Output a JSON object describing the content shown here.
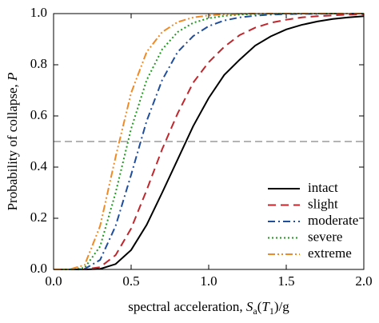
{
  "chart_data": {
    "type": "line",
    "x_label": [
      "spectral acceleration, ",
      "S",
      "a",
      "(",
      "T",
      "1",
      ")/g"
    ],
    "y_label": [
      "Probability of collapse, ",
      "P"
    ],
    "x": [
      0,
      0.1,
      0.2,
      0.3,
      0.4,
      0.5,
      0.6,
      0.7,
      0.8,
      0.9,
      1.0,
      1.1,
      1.2,
      1.3,
      1.4,
      1.5,
      1.6,
      1.7,
      1.8,
      1.9,
      2.0
    ],
    "series": [
      {
        "name": "intact",
        "color": "#000000",
        "dash": "solid",
        "values": [
          0,
          0,
          0,
          0.002,
          0.021,
          0.076,
          0.174,
          0.3,
          0.43,
          0.56,
          0.67,
          0.76,
          0.82,
          0.875,
          0.911,
          0.938,
          0.956,
          0.969,
          0.979,
          0.985,
          0.99
        ]
      },
      {
        "name": "slight",
        "color": "#c0272d",
        "dash": "dashed",
        "values": [
          0,
          0,
          0,
          0.009,
          0.056,
          0.16,
          0.31,
          0.47,
          0.61,
          0.73,
          0.81,
          0.87,
          0.916,
          0.945,
          0.964,
          0.976,
          0.985,
          0.99,
          0.993,
          0.996,
          0.997
        ]
      },
      {
        "name": "moderate",
        "color": "#1f4e9c",
        "dash": "dashdot",
        "values": [
          0,
          0,
          0.002,
          0.037,
          0.17,
          0.37,
          0.58,
          0.74,
          0.85,
          0.912,
          0.951,
          0.973,
          0.985,
          0.992,
          0.996,
          0.998,
          0.999,
          0.999,
          1.0,
          1.0,
          1.0
        ]
      },
      {
        "name": "severe",
        "color": "#1e9a1e",
        "dash": "dotted",
        "values": [
          0,
          0,
          0.006,
          0.09,
          0.3,
          0.55,
          0.74,
          0.86,
          0.928,
          0.964,
          0.982,
          0.991,
          0.996,
          0.998,
          0.999,
          1.0,
          1.0,
          1.0,
          1.0,
          1.0,
          1.0
        ]
      },
      {
        "name": "extreme",
        "color": "#f08a24",
        "dash": "dashdotdot",
        "values": [
          0,
          0,
          0.017,
          0.17,
          0.44,
          0.69,
          0.85,
          0.928,
          0.967,
          0.985,
          0.993,
          0.997,
          0.999,
          1.0,
          1.0,
          1.0,
          1.0,
          1.0,
          1.0,
          1.0,
          1.0
        ]
      }
    ],
    "reference_line": 0.5,
    "xlim": [
      0,
      2.0
    ],
    "ylim": [
      0,
      1.0
    ],
    "xticks": [
      {
        "value": 0,
        "label": "0.0"
      },
      {
        "value": 0.5,
        "label": "0.5"
      },
      {
        "value": 1.0,
        "label": "1.0"
      },
      {
        "value": 1.5,
        "label": "1.5"
      },
      {
        "value": 2.0,
        "label": "2.0"
      }
    ],
    "yticks": [
      {
        "value": 0,
        "label": "0.0"
      },
      {
        "value": 0.2,
        "label": "0.2"
      },
      {
        "value": 0.4,
        "label": "0.4"
      },
      {
        "value": 0.6,
        "label": "0.6"
      },
      {
        "value": 0.8,
        "label": "0.8"
      },
      {
        "value": 1.0,
        "label": "1.0"
      }
    ],
    "legend": "lower right"
  }
}
